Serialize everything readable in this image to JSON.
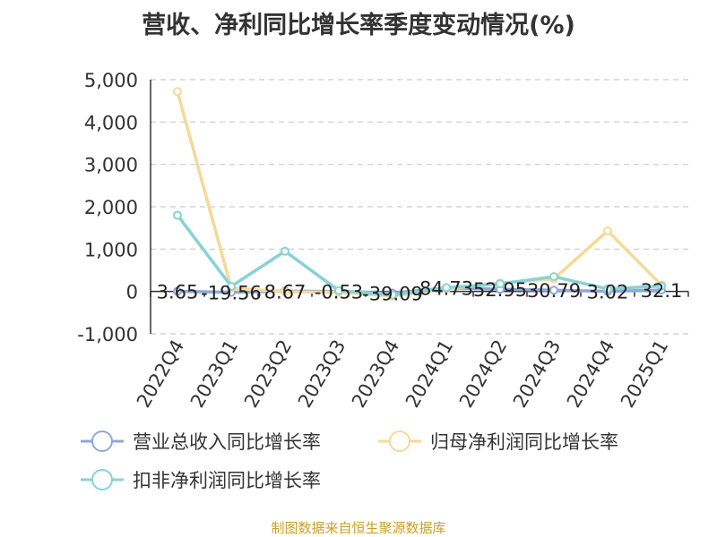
{
  "title": "营收、净利同比增长率季度变动情况(%)",
  "source": "制图数据来自恒生聚源数据库",
  "chart_data": {
    "type": "line",
    "categories": [
      "2022Q4",
      "2023Q1",
      "2023Q2",
      "2023Q3",
      "2023Q4",
      "2024Q1",
      "2024Q2",
      "2024Q3",
      "2024Q4",
      "2025Q1"
    ],
    "yticks": [
      "5,000",
      "4,000",
      "3,000",
      "2,000",
      "1,000",
      "0",
      "-1,000"
    ],
    "ylim": [
      -1000,
      5000
    ],
    "grid": true,
    "legend_position": "bottom",
    "series": [
      {
        "name": "营业总收入同比增长率",
        "color": "#8fa9d8",
        "values": [
          3.65,
          -19.56,
          8.67,
          -0.53,
          -39.09,
          84.73,
          52.95,
          30.79,
          3.02,
          32.1
        ],
        "labels": [
          "3.65",
          "-19.56",
          "8.67",
          "-0.53",
          "-39.09",
          "84.73",
          "52.95",
          "30.79",
          "3.02",
          "32.1"
        ]
      },
      {
        "name": "归母净利润同比增长率",
        "color": "#f7d898",
        "values": [
          4720,
          80,
          -10,
          -20,
          -110,
          60,
          200,
          300,
          1430,
          150
        ]
      },
      {
        "name": "扣非净利润同比增长率",
        "color": "#86d2d6",
        "values": [
          1800,
          120,
          950,
          20,
          -80,
          90,
          180,
          350,
          60,
          130
        ]
      }
    ]
  }
}
